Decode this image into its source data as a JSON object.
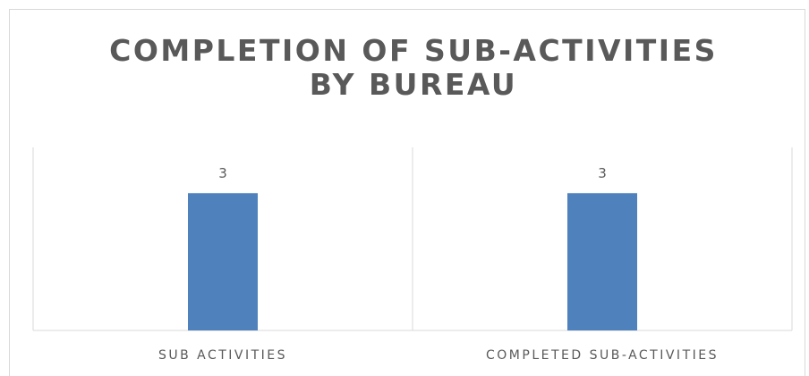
{
  "chart_data": {
    "type": "bar",
    "title": "COMPLETION OF SUB-ACTIVITIES BY BUREAU",
    "categories": [
      "SUB ACTIVITIES",
      "COMPLETED SUB-ACTIVITIES"
    ],
    "values": [
      3,
      3
    ],
    "color": "#4f81bd",
    "ylim": [
      0,
      4
    ]
  }
}
